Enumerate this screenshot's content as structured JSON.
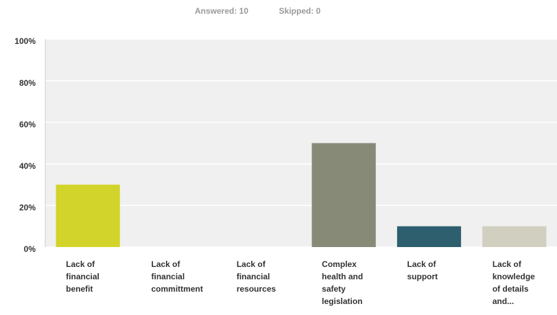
{
  "chart_data": {
    "type": "bar",
    "annotations": [
      "Answered: 10",
      "Skipped: 0"
    ],
    "categories": [
      "Lack of financial benefit",
      "Lack of financial committment",
      "Lack of financial resources",
      "Complex health and safety legislation",
      "Lack of support",
      "Lack of knowledge of details and..."
    ],
    "values": [
      30,
      0,
      0,
      50,
      10,
      10
    ],
    "colors": [
      "#d3d42b",
      "#6fa8c7",
      "#a3a3a3",
      "#878a77",
      "#2d5f6e",
      "#d1cfbf"
    ],
    "ylim": [
      0,
      100
    ],
    "yticks": [
      {
        "value": 0,
        "label": "0%"
      },
      {
        "value": 20,
        "label": "20%"
      },
      {
        "value": 40,
        "label": "40%"
      },
      {
        "value": 60,
        "label": "60%"
      },
      {
        "value": 80,
        "label": "80%"
      },
      {
        "value": 100,
        "label": "100%"
      }
    ],
    "grid": true
  }
}
